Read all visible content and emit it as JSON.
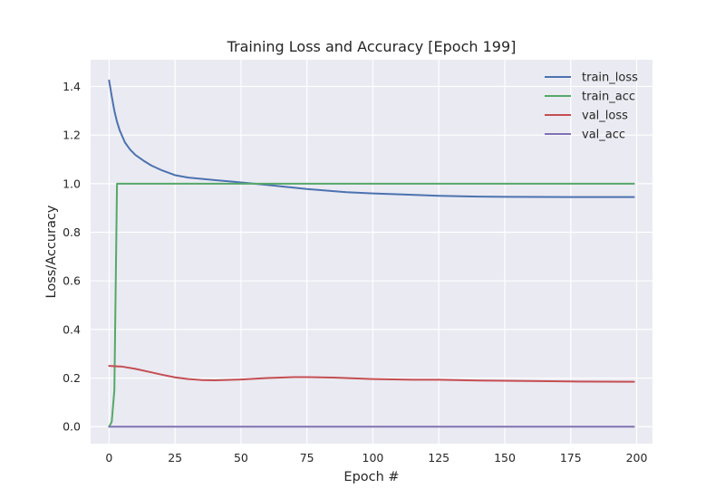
{
  "chart_data": {
    "type": "line",
    "title": "Training Loss and Accuracy [Epoch 199]",
    "xlabel": "Epoch #",
    "ylabel": "Loss/Accuracy",
    "xlim": [
      -7,
      206
    ],
    "ylim": [
      -0.07,
      1.51
    ],
    "xticks": [
      0,
      25,
      50,
      75,
      100,
      125,
      150,
      175,
      200
    ],
    "xtick_labels": [
      "0",
      "25",
      "50",
      "75",
      "100",
      "125",
      "150",
      "175",
      "200"
    ],
    "yticks": [
      0.0,
      0.2,
      0.4,
      0.6,
      0.8,
      1.0,
      1.2,
      1.4
    ],
    "ytick_labels": [
      "0.0",
      "0.2",
      "0.4",
      "0.6",
      "0.8",
      "1.0",
      "1.2",
      "1.4"
    ],
    "grid": true,
    "legend_position": "top-right",
    "colors": {
      "background": "#eaeaf2",
      "grid": "#ffffff"
    },
    "series": [
      {
        "name": "train_loss",
        "color": "#4c72b0",
        "x": [
          0,
          1,
          2,
          3,
          4,
          5,
          6,
          8,
          10,
          13,
          16,
          20,
          25,
          30,
          40,
          50,
          60,
          75,
          90,
          100,
          110,
          125,
          140,
          150,
          175,
          199
        ],
        "y": [
          1.425,
          1.36,
          1.3,
          1.255,
          1.22,
          1.195,
          1.17,
          1.14,
          1.118,
          1.095,
          1.075,
          1.055,
          1.035,
          1.025,
          1.015,
          1.005,
          0.995,
          0.978,
          0.965,
          0.96,
          0.956,
          0.95,
          0.947,
          0.946,
          0.945,
          0.945
        ]
      },
      {
        "name": "train_acc",
        "color": "#55a868",
        "x": [
          0,
          1,
          2,
          3,
          10,
          50,
          100,
          150,
          199
        ],
        "y": [
          0.0,
          0.02,
          0.15,
          1.0,
          1.0,
          1.0,
          1.0,
          1.0,
          1.0
        ]
      },
      {
        "name": "val_loss",
        "color": "#c44e52",
        "x": [
          0,
          5,
          10,
          15,
          20,
          25,
          30,
          35,
          40,
          50,
          60,
          70,
          75,
          85,
          100,
          115,
          125,
          140,
          150,
          175,
          199
        ],
        "y": [
          0.25,
          0.247,
          0.238,
          0.226,
          0.214,
          0.203,
          0.196,
          0.192,
          0.191,
          0.194,
          0.2,
          0.204,
          0.204,
          0.202,
          0.196,
          0.193,
          0.193,
          0.19,
          0.189,
          0.186,
          0.185
        ]
      },
      {
        "name": "val_acc",
        "color": "#8172b2",
        "x": [
          0,
          50,
          100,
          150,
          199
        ],
        "y": [
          0.0,
          0.0,
          0.0,
          0.0,
          0.0
        ]
      }
    ]
  }
}
